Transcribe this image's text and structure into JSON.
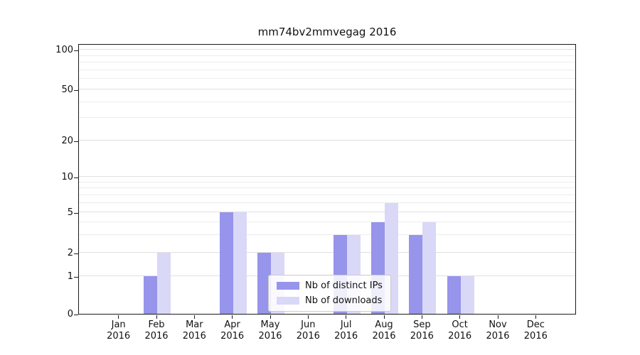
{
  "chart_data": {
    "type": "bar",
    "title": "mm74bv2mmvegag 2016",
    "categories": [
      "Jan 2016",
      "Feb 2016",
      "Mar 2016",
      "Apr 2016",
      "May 2016",
      "Jun 2016",
      "Jul 2016",
      "Aug 2016",
      "Sep 2016",
      "Oct 2016",
      "Nov 2016",
      "Dec 2016"
    ],
    "series": [
      {
        "name": "Nb of distinct IPs",
        "color": "#9694eb",
        "values": [
          0,
          1,
          0,
          5,
          2,
          0,
          3,
          4,
          3,
          1,
          0,
          0
        ]
      },
      {
        "name": "Nb of downloads",
        "color": "#d9d8f7",
        "values": [
          0,
          2,
          0,
          5,
          2,
          0,
          3,
          6,
          4,
          1,
          0,
          0
        ]
      }
    ],
    "xlabel": "",
    "ylabel": "",
    "yscale": "symlog",
    "yticks": [
      0,
      1,
      2,
      5,
      10,
      20,
      50,
      100
    ],
    "minor_gridlines": [
      3,
      4,
      6,
      7,
      8,
      9,
      30,
      40,
      60,
      70,
      80,
      90
    ],
    "ylim": [
      0,
      130
    ],
    "grid": true,
    "legend": {
      "position": "lower center",
      "entries": [
        "Nb of distinct IPs",
        "Nb of downloads"
      ]
    }
  }
}
